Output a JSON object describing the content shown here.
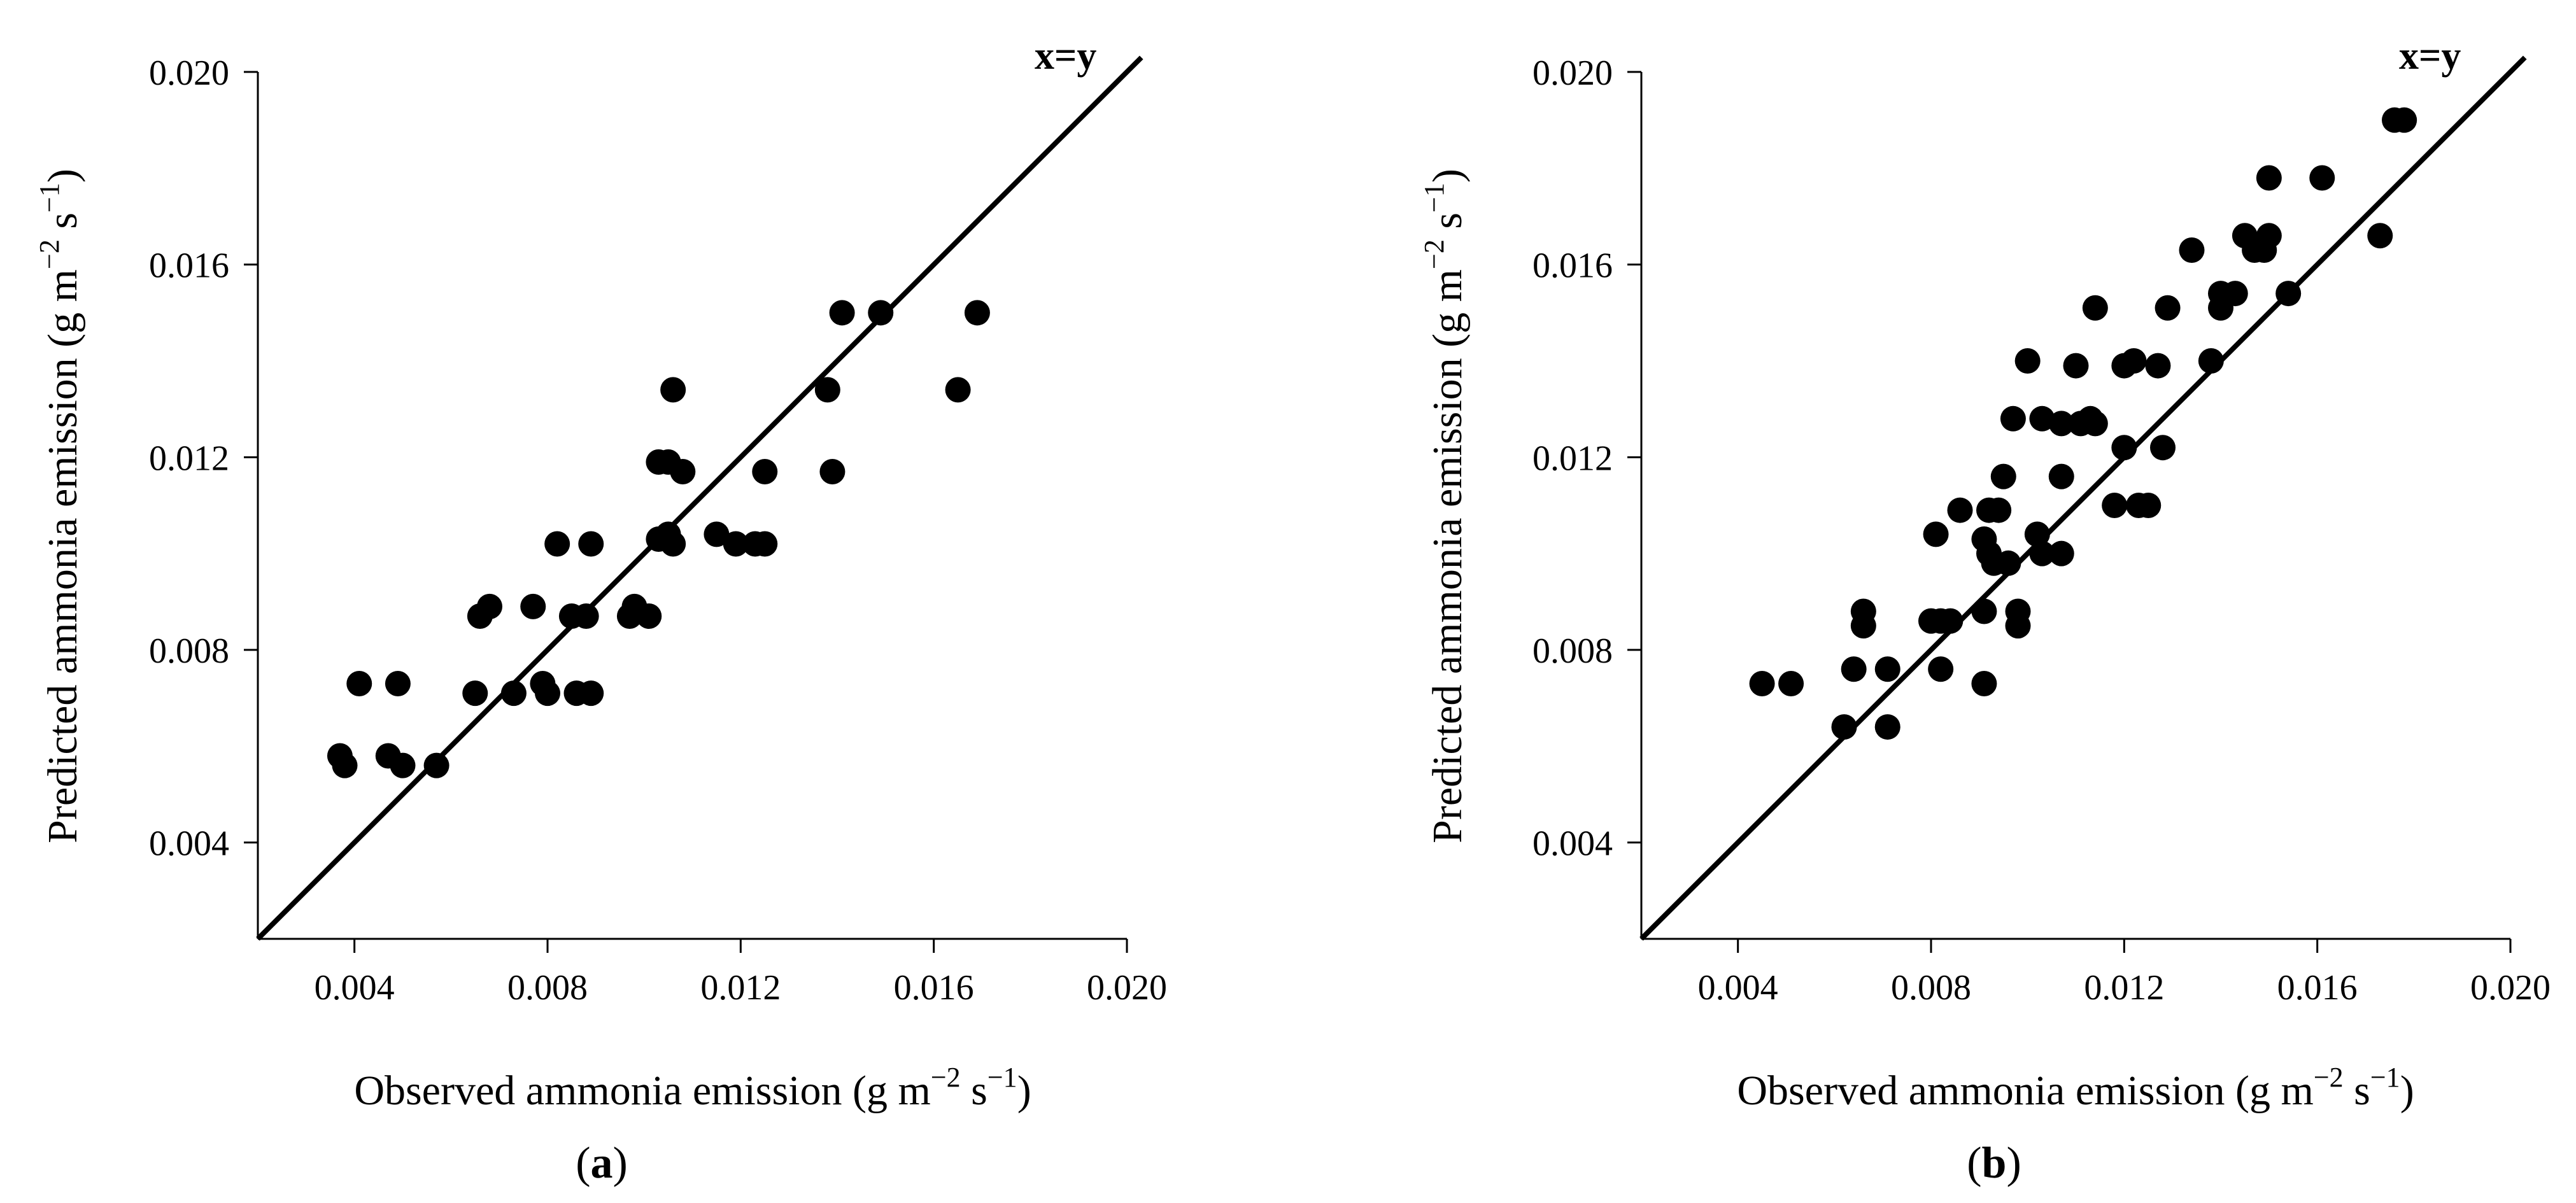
{
  "chart_data": [
    {
      "type": "scatter",
      "panel_label": "a",
      "xlabel": "Observed ammonia emission (g m−2 s−1)",
      "xlabel_parts": {
        "base": "Observed ammonia emission (g m",
        "exp1": "−2",
        "mid": " s",
        "exp2": "−1",
        "end": ")"
      },
      "ylabel": "Predicted ammonia emission (g m−2 s−1)",
      "ylabel_parts": {
        "base": "Predicted ammonia emission (g m",
        "exp1": "−2",
        "mid": " s",
        "exp2": "−1",
        "end": ")"
      },
      "xlim": [
        0.002,
        0.02
      ],
      "ylim": [
        0.002,
        0.02
      ],
      "xticks": [
        "0.004",
        "0.008",
        "0.012",
        "0.016",
        "0.020"
      ],
      "yticks": [
        "0.004",
        "0.008",
        "0.012",
        "0.016",
        "0.020"
      ],
      "reference_line": {
        "label": "x=y",
        "from": [
          0.002,
          0.002
        ],
        "to": [
          0.0203,
          0.0203
        ]
      },
      "points": [
        [
          0.0037,
          0.0058
        ],
        [
          0.0038,
          0.0056
        ],
        [
          0.0041,
          0.0073
        ],
        [
          0.0047,
          0.0058
        ],
        [
          0.0049,
          0.0073
        ],
        [
          0.005,
          0.0056
        ],
        [
          0.0057,
          0.0056
        ],
        [
          0.0065,
          0.0071
        ],
        [
          0.0066,
          0.0087
        ],
        [
          0.0068,
          0.0089
        ],
        [
          0.0073,
          0.0071
        ],
        [
          0.0077,
          0.0089
        ],
        [
          0.0079,
          0.0073
        ],
        [
          0.008,
          0.0071
        ],
        [
          0.0082,
          0.0102
        ],
        [
          0.0085,
          0.0087
        ],
        [
          0.0086,
          0.0071
        ],
        [
          0.0088,
          0.0087
        ],
        [
          0.0089,
          0.0071
        ],
        [
          0.0089,
          0.0102
        ],
        [
          0.0097,
          0.0087
        ],
        [
          0.0098,
          0.0089
        ],
        [
          0.0101,
          0.0087
        ],
        [
          0.0103,
          0.0119
        ],
        [
          0.0103,
          0.0103
        ],
        [
          0.0105,
          0.0119
        ],
        [
          0.0105,
          0.0104
        ],
        [
          0.0106,
          0.0134
        ],
        [
          0.0106,
          0.0102
        ],
        [
          0.0108,
          0.0117
        ],
        [
          0.0115,
          0.0104
        ],
        [
          0.0119,
          0.0102
        ],
        [
          0.0123,
          0.0102
        ],
        [
          0.0125,
          0.0117
        ],
        [
          0.0125,
          0.0102
        ],
        [
          0.0138,
          0.0134
        ],
        [
          0.0139,
          0.0117
        ],
        [
          0.0141,
          0.015
        ],
        [
          0.0149,
          0.015
        ],
        [
          0.0165,
          0.0134
        ],
        [
          0.0169,
          0.015
        ]
      ]
    },
    {
      "type": "scatter",
      "panel_label": "b",
      "xlabel": "Observed ammonia emission (g m−2 s−1)",
      "xlabel_parts": {
        "base": "Observed ammonia emission (g m",
        "exp1": "−2",
        "mid": " s",
        "exp2": "−1",
        "end": ")"
      },
      "ylabel": "Predicted ammonia emission (g m−2 s−1)",
      "ylabel_parts": {
        "base": "Predicted ammonia emission (g m",
        "exp1": "−2",
        "mid": " s",
        "exp2": "−1",
        "end": ")"
      },
      "xlim": [
        0.002,
        0.02
      ],
      "ylim": [
        0.002,
        0.02
      ],
      "xticks": [
        "0.004",
        "0.008",
        "0.012",
        "0.016",
        "0.020"
      ],
      "yticks": [
        "0.004",
        "0.008",
        "0.012",
        "0.016",
        "0.020"
      ],
      "reference_line": {
        "label": "x=y",
        "from": [
          0.002,
          0.002
        ],
        "to": [
          0.0203,
          0.0203
        ]
      },
      "points": [
        [
          0.0045,
          0.0073
        ],
        [
          0.0051,
          0.0073
        ],
        [
          0.0062,
          0.0064
        ],
        [
          0.0064,
          0.0076
        ],
        [
          0.0066,
          0.0088
        ],
        [
          0.0066,
          0.0085
        ],
        [
          0.0071,
          0.0076
        ],
        [
          0.0071,
          0.0064
        ],
        [
          0.008,
          0.0086
        ],
        [
          0.0081,
          0.0104
        ],
        [
          0.0082,
          0.0086
        ],
        [
          0.0082,
          0.0076
        ],
        [
          0.0084,
          0.0086
        ],
        [
          0.0086,
          0.0109
        ],
        [
          0.0091,
          0.0073
        ],
        [
          0.0091,
          0.0088
        ],
        [
          0.0091,
          0.0103
        ],
        [
          0.0092,
          0.0109
        ],
        [
          0.0092,
          0.01
        ],
        [
          0.0093,
          0.0098
        ],
        [
          0.0094,
          0.0109
        ],
        [
          0.0095,
          0.0116
        ],
        [
          0.0096,
          0.0098
        ],
        [
          0.0097,
          0.0128
        ],
        [
          0.0098,
          0.0085
        ],
        [
          0.0098,
          0.0088
        ],
        [
          0.01,
          0.014
        ],
        [
          0.0102,
          0.0104
        ],
        [
          0.0103,
          0.01
        ],
        [
          0.0103,
          0.0128
        ],
        [
          0.0107,
          0.0127
        ],
        [
          0.0107,
          0.0116
        ],
        [
          0.0107,
          0.01
        ],
        [
          0.011,
          0.0139
        ],
        [
          0.0111,
          0.0127
        ],
        [
          0.0113,
          0.0128
        ],
        [
          0.0114,
          0.0127
        ],
        [
          0.0114,
          0.0151
        ],
        [
          0.0118,
          0.011
        ],
        [
          0.012,
          0.0122
        ],
        [
          0.012,
          0.0139
        ],
        [
          0.0122,
          0.014
        ],
        [
          0.0123,
          0.011
        ],
        [
          0.0125,
          0.011
        ],
        [
          0.0127,
          0.0139
        ],
        [
          0.0128,
          0.0122
        ],
        [
          0.0129,
          0.0151
        ],
        [
          0.0134,
          0.0163
        ],
        [
          0.0138,
          0.014
        ],
        [
          0.014,
          0.0151
        ],
        [
          0.014,
          0.0154
        ],
        [
          0.0143,
          0.0154
        ],
        [
          0.0145,
          0.0166
        ],
        [
          0.0147,
          0.0163
        ],
        [
          0.0149,
          0.0163
        ],
        [
          0.015,
          0.0166
        ],
        [
          0.015,
          0.0178
        ],
        [
          0.0154,
          0.0154
        ],
        [
          0.0161,
          0.0178
        ],
        [
          0.0173,
          0.0166
        ],
        [
          0.0176,
          0.019
        ],
        [
          0.0178,
          0.019
        ]
      ]
    }
  ]
}
